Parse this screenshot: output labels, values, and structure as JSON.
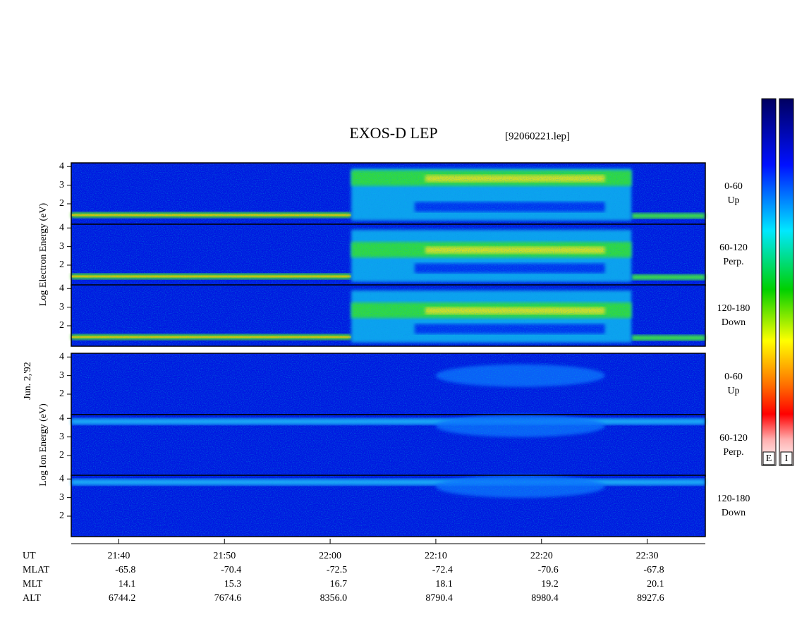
{
  "chart_data": {
    "type": "spectrogram",
    "title": "EXOS-D LEP",
    "subtitle": "[92060221.lep]",
    "date_label": "Jun. 2,'92",
    "ylim": [
      0.9,
      4.2
    ],
    "yticks": [
      2,
      3,
      4
    ],
    "xlim": [
      35.5,
      95.5
    ],
    "xticks": [
      {
        "value": 40,
        "label": "21:40"
      },
      {
        "value": 50,
        "label": "21:50"
      },
      {
        "value": 60,
        "label": "22:00"
      },
      {
        "value": 70,
        "label": "22:10"
      },
      {
        "value": 80,
        "label": "22:20"
      },
      {
        "value": 90,
        "label": "22:30"
      }
    ],
    "xaxis_name": "UT",
    "groups": [
      {
        "ylabel": "Log Electron Energy (eV)",
        "panels": [
          {
            "range": "0-60",
            "direction": "Up"
          },
          {
            "range": "60-120",
            "direction": "Perp."
          },
          {
            "range": "120-180",
            "direction": "Down"
          }
        ]
      },
      {
        "ylabel": "Log Ion Energy (eV)",
        "panels": [
          {
            "range": "0-60",
            "direction": "Up"
          },
          {
            "range": "60-120",
            "direction": "Perp."
          },
          {
            "range": "120-180",
            "direction": "Down"
          }
        ]
      }
    ],
    "ephemeris": [
      {
        "name": "MLAT",
        "values": [
          "-65.8",
          "-70.4",
          "-72.5",
          "-72.4",
          "-70.6",
          "-67.8"
        ]
      },
      {
        "name": "MLT",
        "values": [
          "14.1",
          "15.3",
          "16.7",
          "18.1",
          "19.2",
          "20.1"
        ]
      },
      {
        "name": "ALT",
        "values": [
          "6744.2",
          "7674.6",
          "8356.0",
          "8790.4",
          "8980.4",
          "8927.6"
        ]
      }
    ],
    "colorbars": [
      "E",
      "I"
    ]
  }
}
